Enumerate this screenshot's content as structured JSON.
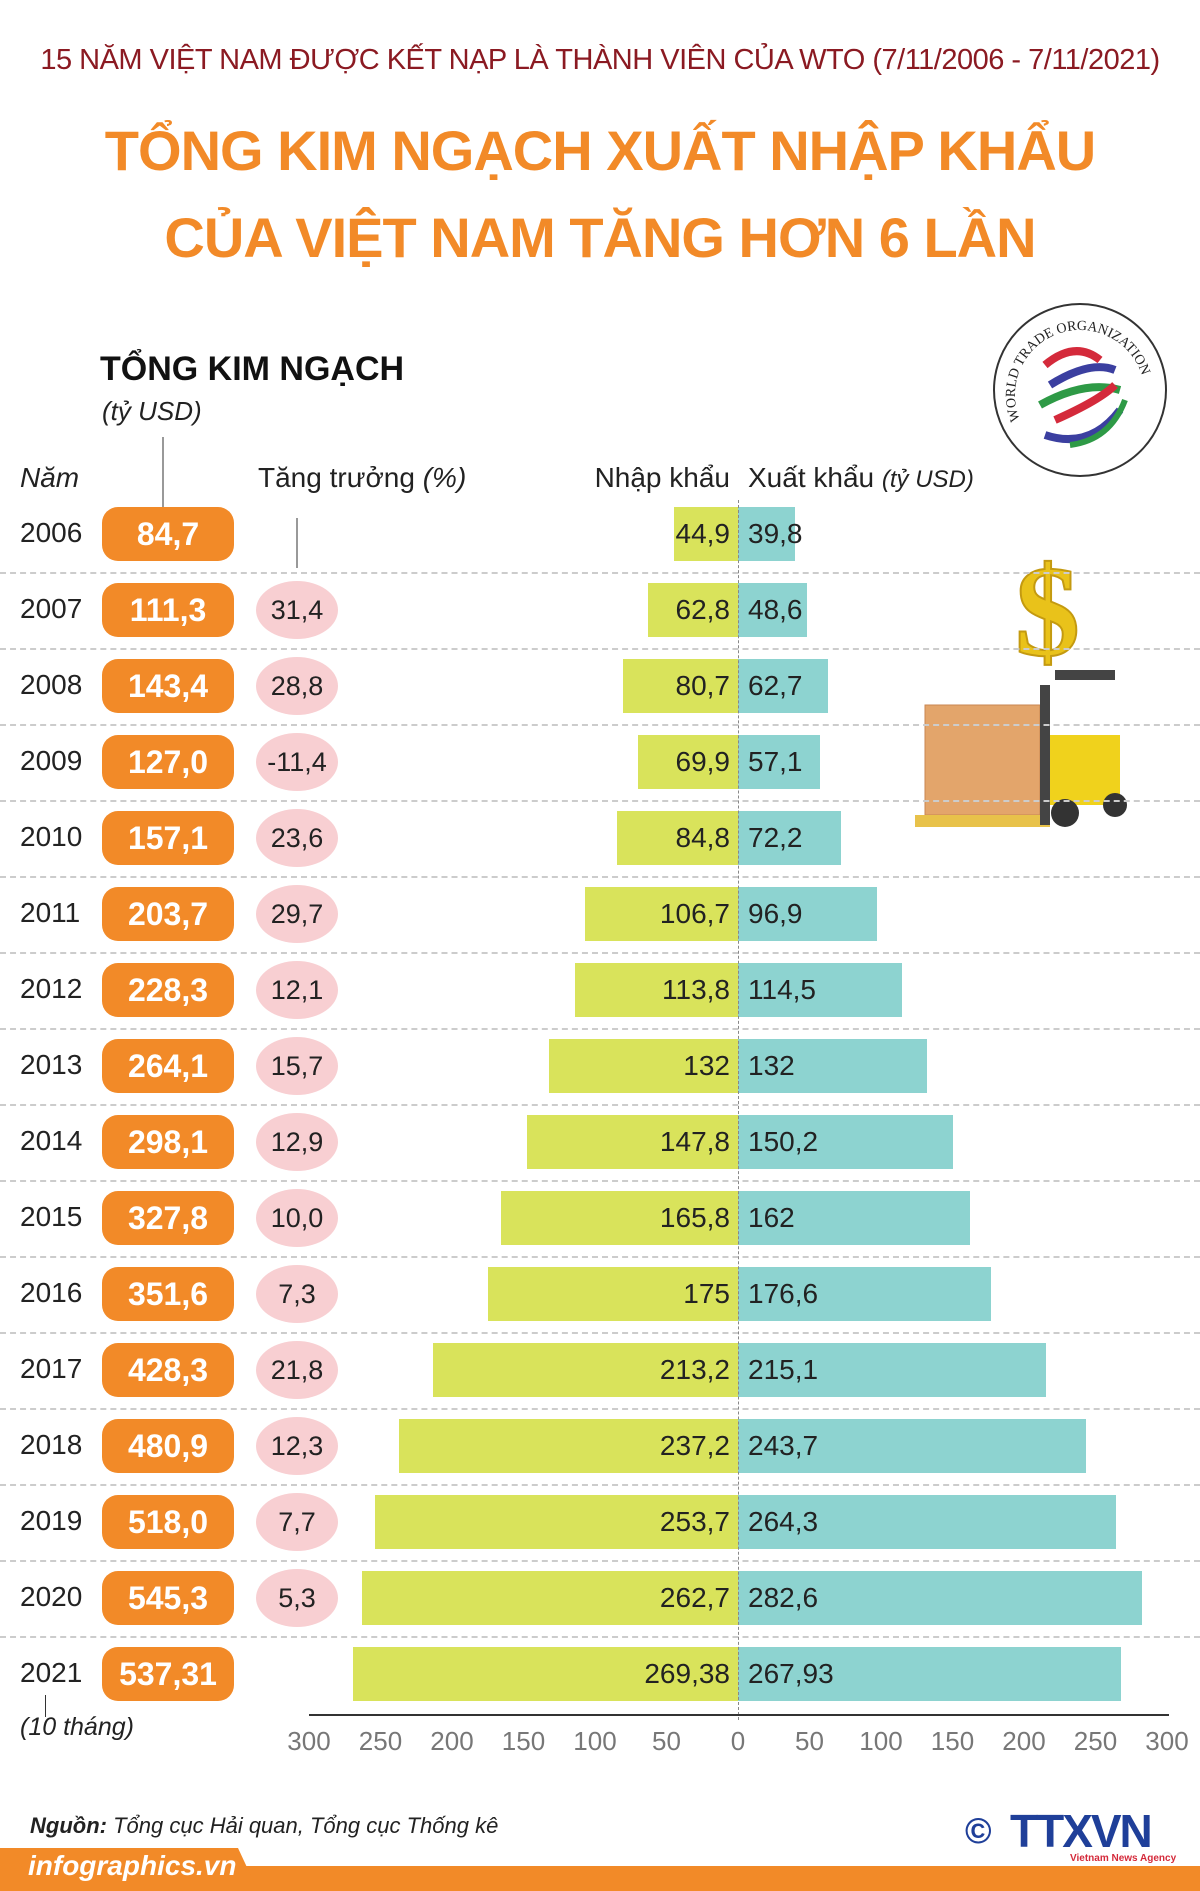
{
  "header": {
    "supertitle": "15 NĂM VIỆT NAM ĐƯỢC KẾT NẠP LÀ THÀNH VIÊN CỦA WTO (7/11/2006 - 7/11/2021)",
    "title_line1": "TỔNG KIM NGẠCH XUẤT NHẬP KHẨU",
    "title_line2": "CỦA VIỆT NAM TĂNG HƠN 6 LẦN"
  },
  "logo": {
    "wto_text": "WORLD TRADE ORGANIZATION"
  },
  "chart_data": {
    "type": "bar",
    "orientation": "horizontal-diverging",
    "total_label": "TỔNG KIM NGẠCH",
    "total_unit": "(tỷ USD)",
    "year_header": "Năm",
    "growth_header": "Tăng trưởng",
    "growth_unit": "(%)",
    "import_label": "Nhập khẩu",
    "export_label": "Xuất khẩu",
    "export_unit": "(tỷ USD)",
    "year_note": "(10 tháng)",
    "categories": [
      "2006",
      "2007",
      "2008",
      "2009",
      "2010",
      "2011",
      "2012",
      "2013",
      "2014",
      "2015",
      "2016",
      "2017",
      "2018",
      "2019",
      "2020",
      "2021"
    ],
    "totals": [
      "84,7",
      "111,3",
      "143,4",
      "127,0",
      "157,1",
      "203,7",
      "228,3",
      "264,1",
      "298,1",
      "327,8",
      "351,6",
      "428,3",
      "480,9",
      "518,0",
      "545,3",
      "537,31"
    ],
    "growth": [
      "",
      "31,4",
      "28,8",
      "-11,4",
      "23,6",
      "29,7",
      "12,1",
      "15,7",
      "12,9",
      "10,0",
      "7,3",
      "21,8",
      "12,3",
      "7,7",
      "5,3",
      ""
    ],
    "series": [
      {
        "name": "Nhập khẩu",
        "values": [
          44.9,
          62.8,
          80.7,
          69.9,
          84.8,
          106.7,
          113.8,
          132,
          147.8,
          165.8,
          175,
          213.2,
          237.2,
          253.7,
          262.7,
          269.38
        ],
        "labels": [
          "44,9",
          "62,8",
          "80,7",
          "69,9",
          "84,8",
          "106,7",
          "113,8",
          "132",
          "147,8",
          "165,8",
          "175",
          "213,2",
          "237,2",
          "253,7",
          "262,7",
          "269,38"
        ],
        "color": "#d9e35b"
      },
      {
        "name": "Xuất khẩu",
        "values": [
          39.8,
          48.6,
          62.7,
          57.1,
          72.2,
          96.9,
          114.5,
          132,
          150.2,
          162,
          176.6,
          215.1,
          243.7,
          264.3,
          282.6,
          267.93
        ],
        "labels": [
          "39,8",
          "48,6",
          "62,7",
          "57,1",
          "72,2",
          "96,9",
          "114,5",
          "132",
          "150,2",
          "162",
          "176,6",
          "215,1",
          "243,7",
          "264,3",
          "282,6",
          "267,93"
        ],
        "color": "#8dd3d0"
      }
    ],
    "xlim": [
      -300,
      300
    ],
    "xticks": [
      "300",
      "250",
      "200",
      "150",
      "100",
      "50",
      "0",
      "50",
      "100",
      "150",
      "200",
      "250",
      "300"
    ]
  },
  "footer": {
    "source_label": "Nguồn:",
    "source_text": "Tổng cục Hải quan, Tổng cục Thống kê",
    "site": "infographics.vn",
    "agency": "TTXVN",
    "agency_sub": "Vietnam News Agency",
    "copyright": "©"
  }
}
